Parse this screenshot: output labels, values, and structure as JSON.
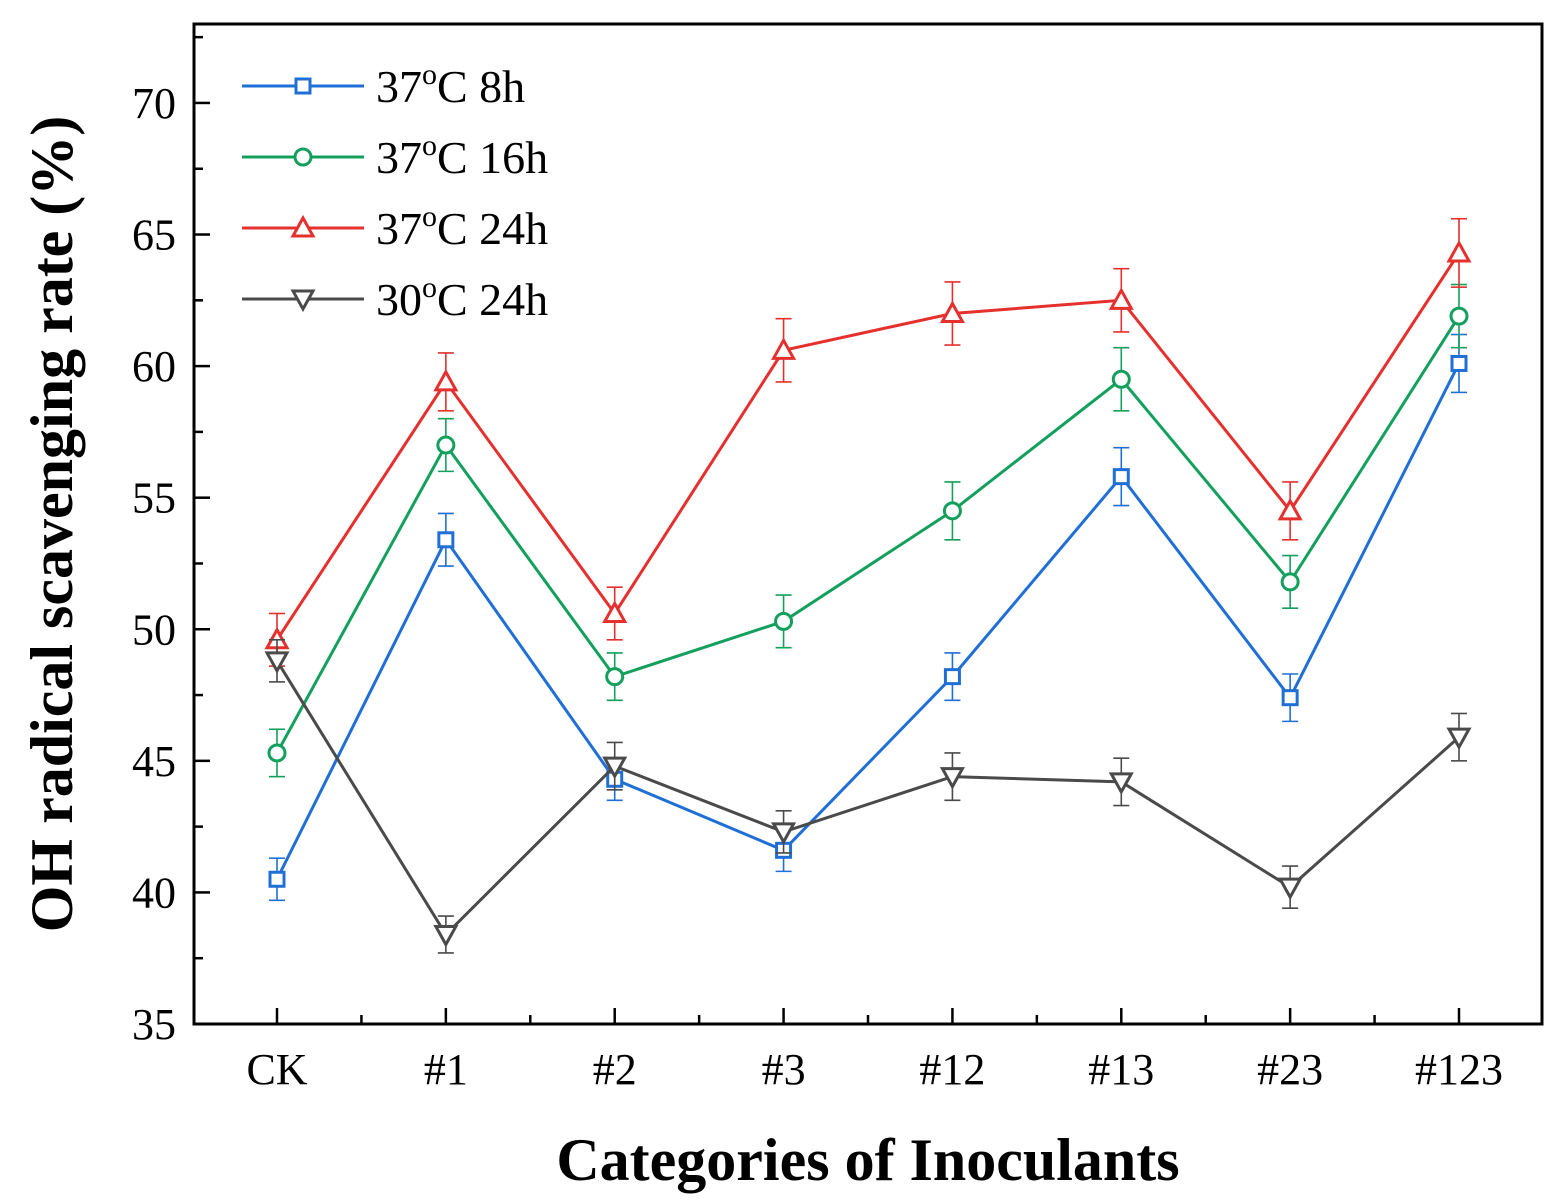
{
  "chart_data": {
    "type": "line",
    "title": "",
    "xlabel": "Categories of Inoculants",
    "ylabel": "OH radical scavenging rate (%)",
    "categories": [
      "CK",
      "#1",
      "#2",
      "#3",
      "#12",
      "#13",
      "#23",
      "#123"
    ],
    "ylim": [
      35,
      73
    ],
    "yticks": [
      35,
      40,
      45,
      50,
      55,
      60,
      65,
      70
    ],
    "y_minor_step": 2.5,
    "grid": false,
    "legend_position": "top-left",
    "series": [
      {
        "name": "37°C 8h",
        "legend": {
          "prefix": "37",
          "sup": "o",
          "suffix": "C 8h"
        },
        "color": "#1f6fd6",
        "marker": "square",
        "values": [
          40.5,
          53.4,
          44.3,
          41.6,
          48.2,
          55.8,
          47.4,
          60.1
        ],
        "errors": [
          0.8,
          1.0,
          0.8,
          0.8,
          0.9,
          1.1,
          0.9,
          1.1
        ]
      },
      {
        "name": "37°C 16h",
        "legend": {
          "prefix": "37",
          "sup": "o",
          "suffix": "C 16h"
        },
        "color": "#13a05c",
        "marker": "circle",
        "values": [
          45.3,
          57.0,
          48.2,
          50.3,
          54.5,
          59.5,
          51.8,
          61.9
        ],
        "errors": [
          0.9,
          1.0,
          0.9,
          1.0,
          1.1,
          1.2,
          1.0,
          1.2
        ]
      },
      {
        "name": "37°C 24h",
        "legend": {
          "prefix": "37",
          "sup": "o",
          "suffix": "C 24h"
        },
        "color": "#e5302d",
        "marker": "triangle-up",
        "values": [
          49.6,
          59.4,
          50.6,
          60.6,
          62.0,
          62.5,
          54.5,
          64.3
        ],
        "errors": [
          1.0,
          1.1,
          1.0,
          1.2,
          1.2,
          1.2,
          1.1,
          1.3
        ]
      },
      {
        "name": "30°C 24h",
        "legend": {
          "prefix": "30",
          "sup": "o",
          "suffix": "C 24h"
        },
        "color": "#4a4a4a",
        "marker": "triangle-down",
        "values": [
          48.8,
          38.4,
          44.8,
          42.3,
          44.4,
          44.2,
          40.2,
          45.9
        ],
        "errors": [
          0.8,
          0.7,
          0.9,
          0.8,
          0.9,
          0.9,
          0.8,
          0.9
        ]
      }
    ]
  }
}
